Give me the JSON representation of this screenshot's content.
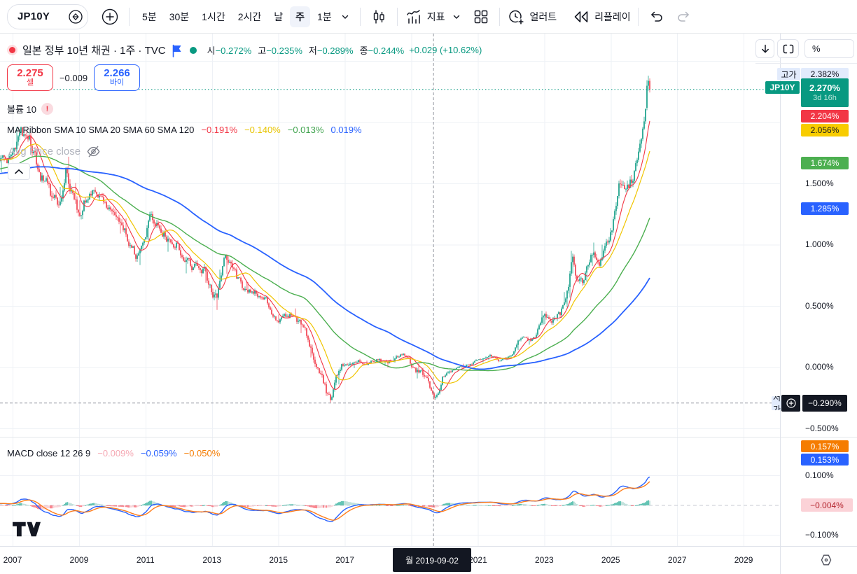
{
  "toolbar": {
    "symbol": "JP10Y",
    "timeframes": [
      "5분",
      "30분",
      "1시간",
      "2시간",
      "날",
      "주",
      "1분"
    ],
    "selected_timeframe": "주",
    "indicators_label": "지표",
    "alert_label": "얼러트",
    "replay_label": "리플레이"
  },
  "legend": {
    "title": "일본 정부 10년 채권 · 1주 · TVC",
    "ohlc": [
      {
        "label": "시",
        "value": "−0.272%"
      },
      {
        "label": "고",
        "value": "−0.235%"
      },
      {
        "label": "저",
        "value": "−0.289%"
      },
      {
        "label": "종",
        "value": "−0.244%"
      }
    ],
    "change": "+0.029 (+10.62%)",
    "volume": {
      "label": "볼륨 10",
      "warning": "!"
    },
    "ma_ribbon": {
      "label": "MA Ribbon SMA 10 SMA 20 SMA 60 SMA 120",
      "values": [
        {
          "text": "−0.191%",
          "color": "#f23645"
        },
        {
          "text": "−0.140%",
          "color": "#e8c400"
        },
        {
          "text": "−0.013%",
          "color": "#3fa34d"
        },
        {
          "text": "0.019%",
          "color": "#2962ff"
        }
      ]
    },
    "avg_price_label": "Avg Price close",
    "macd": {
      "label": "MACD close 12 26 9",
      "values": [
        {
          "text": "−0.009%",
          "color": "#f5a9b4"
        },
        {
          "text": "−0.059%",
          "color": "#2962ff"
        },
        {
          "text": "−0.050%",
          "color": "#f57c00"
        }
      ]
    }
  },
  "trade": {
    "sell_price": "2.275",
    "sell_label": "셀",
    "spread": "−0.009",
    "buy_price": "2.266",
    "buy_label": "바이"
  },
  "price_axis": {
    "unit": "%",
    "high": {
      "tag": "고가",
      "value": "2.382%"
    },
    "last": {
      "tag": "JP10Y",
      "value": "2.270%",
      "countdown": "3d 16h"
    },
    "low_tag": "저가",
    "ma_values": [
      {
        "text": "2.204%",
        "bg": "#f23645",
        "fg": "#ffffff"
      },
      {
        "text": "2.056%",
        "bg": "#f8cc00",
        "fg": "#131722"
      },
      {
        "text": "1.674%",
        "bg": "#4caf50",
        "fg": "#ffffff"
      },
      {
        "text": "1.285%",
        "bg": "#2962ff",
        "fg": "#ffffff"
      }
    ],
    "ticks": [
      {
        "v": 1.5,
        "text": "1.500%"
      },
      {
        "v": 1.0,
        "text": "1.000%"
      },
      {
        "v": 0.5,
        "text": "0.500%"
      },
      {
        "v": 0.0,
        "text": "0.000%"
      },
      {
        "v": -0.5,
        "text": "−0.500%"
      }
    ],
    "crosshair_value": "−0.290%"
  },
  "macd_axis": {
    "signal": {
      "text": "0.157%",
      "bg": "#f57c00"
    },
    "line": {
      "text": "0.153%",
      "bg": "#2962ff"
    },
    "hist": {
      "text": "−0.004%",
      "bg": "#fbd2d7",
      "fg": "#b4262f"
    },
    "ticks": [
      {
        "v": 0.1,
        "text": "0.100%"
      },
      {
        "v": -0.1,
        "text": "−0.100%"
      }
    ]
  },
  "time_axis": {
    "years": [
      "2007",
      "2009",
      "2011",
      "2013",
      "2015",
      "2017",
      "2019",
      "2021",
      "2023",
      "2025",
      "2027",
      "2029"
    ],
    "tooltip": "월 2019-09-02"
  },
  "chart_data": {
    "type": "candlestick",
    "symbol": "JP10Y",
    "title": "일본 정부 10년 채권 · 1주 · TVC",
    "timeframe": "1주",
    "unit": "%",
    "x_range_years": [
      2007,
      2029
    ],
    "y_range_pct": [
      -0.6,
      2.45
    ],
    "grid": true,
    "last_close_pct": 2.27,
    "session_high_pct": 2.382,
    "change": "+0.029",
    "change_pct": "+10.62%",
    "crosshair": {
      "date": "2019-09-02",
      "price_pct": -0.29
    },
    "price_path_year_pct": [
      [
        2004.0,
        1.55
      ],
      [
        2005.0,
        1.55
      ],
      [
        2006.0,
        1.7
      ],
      [
        2006.6,
        1.72
      ],
      [
        2007.0,
        1.68
      ],
      [
        2007.25,
        1.92
      ],
      [
        2007.5,
        1.85
      ],
      [
        2007.8,
        1.6
      ],
      [
        2008.1,
        1.45
      ],
      [
        2008.35,
        1.3
      ],
      [
        2008.6,
        1.6
      ],
      [
        2008.75,
        1.48
      ],
      [
        2009.0,
        1.25
      ],
      [
        2009.3,
        1.45
      ],
      [
        2009.6,
        1.38
      ],
      [
        2009.9,
        1.3
      ],
      [
        2010.3,
        1.15
      ],
      [
        2010.7,
        0.92
      ],
      [
        2010.95,
        1.05
      ],
      [
        2011.15,
        1.25
      ],
      [
        2011.4,
        1.15
      ],
      [
        2011.7,
        1.05
      ],
      [
        2012.0,
        0.98
      ],
      [
        2012.4,
        0.85
      ],
      [
        2012.8,
        0.78
      ],
      [
        2013.0,
        0.62
      ],
      [
        2013.15,
        0.55
      ],
      [
        2013.4,
        0.88
      ],
      [
        2013.6,
        0.8
      ],
      [
        2013.9,
        0.65
      ],
      [
        2014.3,
        0.62
      ],
      [
        2014.7,
        0.52
      ],
      [
        2015.0,
        0.35
      ],
      [
        2015.2,
        0.42
      ],
      [
        2015.5,
        0.42
      ],
      [
        2015.8,
        0.3
      ],
      [
        2016.05,
        0.08
      ],
      [
        2016.3,
        -0.1
      ],
      [
        2016.55,
        -0.27
      ],
      [
        2016.75,
        -0.06
      ],
      [
        2016.95,
        0.03
      ],
      [
        2017.3,
        0.05
      ],
      [
        2017.7,
        0.04
      ],
      [
        2018.0,
        0.06
      ],
      [
        2018.3,
        0.04
      ],
      [
        2018.6,
        0.1
      ],
      [
        2018.85,
        0.09
      ],
      [
        2019.1,
        -0.02
      ],
      [
        2019.35,
        -0.06
      ],
      [
        2019.55,
        -0.16
      ],
      [
        2019.67,
        -0.27
      ],
      [
        2019.8,
        -0.21
      ],
      [
        2019.95,
        -0.07
      ],
      [
        2020.2,
        -0.02
      ],
      [
        2020.5,
        0.01
      ],
      [
        2020.8,
        0.02
      ],
      [
        2021.1,
        0.07
      ],
      [
        2021.4,
        0.09
      ],
      [
        2021.7,
        0.05
      ],
      [
        2021.95,
        0.07
      ],
      [
        2022.2,
        0.21
      ],
      [
        2022.45,
        0.24
      ],
      [
        2022.7,
        0.24
      ],
      [
        2022.95,
        0.42
      ],
      [
        2023.2,
        0.38
      ],
      [
        2023.45,
        0.42
      ],
      [
        2023.7,
        0.62
      ],
      [
        2023.85,
        0.88
      ],
      [
        2024.0,
        0.68
      ],
      [
        2024.2,
        0.72
      ],
      [
        2024.45,
        0.92
      ],
      [
        2024.7,
        0.87
      ],
      [
        2024.95,
        1.06
      ],
      [
        2025.1,
        1.22
      ],
      [
        2025.25,
        1.5
      ],
      [
        2025.4,
        1.42
      ],
      [
        2025.55,
        1.48
      ],
      [
        2025.7,
        1.58
      ],
      [
        2025.85,
        1.72
      ],
      [
        2025.95,
        1.95
      ],
      [
        2026.05,
        2.18
      ],
      [
        2026.12,
        2.35
      ],
      [
        2026.17,
        2.27
      ]
    ],
    "sma": [
      {
        "period": 10,
        "color": "#f23645",
        "last_pct": 2.204
      },
      {
        "period": 20,
        "color": "#f0c400",
        "last_pct": 2.056
      },
      {
        "period": 60,
        "color": "#4caf50",
        "last_pct": 1.674
      },
      {
        "period": 120,
        "color": "#2962ff",
        "last_pct": 1.285
      }
    ],
    "macd": {
      "source": "close",
      "fast": 12,
      "slow": 26,
      "signal": 9,
      "line_last_pct": 0.153,
      "signal_last_pct": 0.157,
      "hist_last_pct": -0.004,
      "line_color": "#2962ff",
      "signal_color": "#ff7d1a"
    },
    "candle_colors": {
      "up": "#089981",
      "down": "#f23645"
    }
  }
}
